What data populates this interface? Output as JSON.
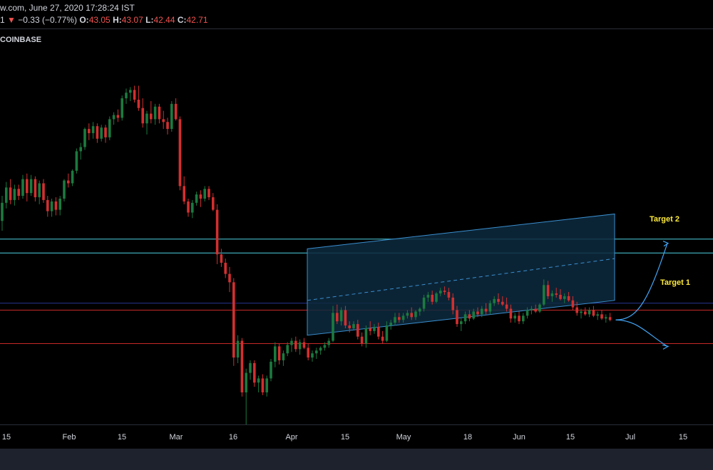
{
  "header": {
    "source_time": "w.com, June 27, 2020 17:28:24 IST",
    "change_prefix": "1",
    "change_arrow": "▼",
    "change_value": "−0.33 (−0.77%)",
    "o_label": "O:",
    "o_value": "43.05",
    "h_label": "H:",
    "h_value": "43.07",
    "l_label": "L:",
    "l_value": "42.44",
    "c_label": "C:",
    "c_value": "42.71",
    "exchange": "COINBASE"
  },
  "colors": {
    "up": "#26a69a",
    "down": "#ef5350",
    "up_candle": "#1b7a3e",
    "down_candle": "#d32f2f",
    "channel_fill": "#0d2a3e",
    "channel_stroke": "#3a8fd0",
    "cyan_line": "#4dd0e1",
    "red_line": "#c62828",
    "navy_line": "#283593",
    "target_text": "#ffeb3b",
    "arrow": "#42a5f5"
  },
  "chart_data": {
    "type": "candlestick",
    "title": "",
    "x_ticks": [
      "15",
      "Feb",
      "15",
      "Mar",
      "16",
      "Apr",
      "15",
      "May",
      "18",
      "Jun",
      "15",
      "Jul",
      "15"
    ],
    "y_range": [
      30,
      58
    ],
    "grid": false,
    "candles": [
      [
        0,
        44.6,
        46.4,
        43.9,
        45.9
      ],
      [
        1,
        45.9,
        47.4,
        45.5,
        47.0
      ],
      [
        2,
        47.0,
        47.6,
        45.8,
        46.1
      ],
      [
        3,
        46.1,
        47.2,
        45.7,
        46.9
      ],
      [
        4,
        46.9,
        47.2,
        46.1,
        46.4
      ],
      [
        5,
        46.4,
        47.9,
        46.2,
        47.6
      ],
      [
        6,
        47.6,
        48.0,
        46.0,
        46.6
      ],
      [
        7,
        46.6,
        47.9,
        46.4,
        47.6
      ],
      [
        8,
        47.6,
        47.8,
        46.0,
        46.3
      ],
      [
        9,
        46.3,
        47.5,
        45.8,
        47.3
      ],
      [
        10,
        47.3,
        47.6,
        45.9,
        46.1
      ],
      [
        11,
        46.1,
        46.4,
        44.9,
        45.3
      ],
      [
        12,
        45.3,
        46.2,
        44.9,
        46.0
      ],
      [
        13,
        46.0,
        46.3,
        45.0,
        45.4
      ],
      [
        14,
        45.4,
        46.4,
        45.0,
        46.2
      ],
      [
        15,
        46.2,
        47.6,
        46.0,
        47.5
      ],
      [
        16,
        47.5,
        48.0,
        47.0,
        47.3
      ],
      [
        17,
        47.3,
        48.3,
        47.1,
        48.2
      ],
      [
        18,
        48.2,
        49.8,
        48.0,
        49.6
      ],
      [
        19,
        49.6,
        50.2,
        49.0,
        49.9
      ],
      [
        20,
        49.9,
        51.3,
        49.7,
        51.2
      ],
      [
        21,
        51.2,
        51.6,
        50.4,
        50.9
      ],
      [
        22,
        50.9,
        51.7,
        50.5,
        51.4
      ],
      [
        23,
        51.4,
        51.6,
        50.2,
        50.5
      ],
      [
        24,
        50.5,
        51.5,
        50.3,
        51.3
      ],
      [
        25,
        51.3,
        51.5,
        50.2,
        50.6
      ],
      [
        26,
        50.6,
        52.1,
        50.4,
        51.9
      ],
      [
        27,
        51.9,
        52.4,
        51.5,
        52.2
      ],
      [
        28,
        52.2,
        52.6,
        51.7,
        52.0
      ],
      [
        29,
        52.0,
        53.6,
        51.8,
        53.4
      ],
      [
        30,
        53.4,
        54.1,
        53.0,
        53.8
      ],
      [
        31,
        53.8,
        54.2,
        53.2,
        54.0
      ],
      [
        32,
        54.0,
        54.3,
        53.1,
        53.3
      ],
      [
        33,
        53.3,
        54.3,
        52.5,
        52.7
      ],
      [
        34,
        52.7,
        53.4,
        51.3,
        51.6
      ],
      [
        35,
        51.6,
        52.5,
        50.8,
        52.3
      ],
      [
        36,
        52.3,
        53.2,
        51.6,
        51.9
      ],
      [
        37,
        51.9,
        53.0,
        51.5,
        52.8
      ],
      [
        38,
        52.8,
        53.0,
        51.6,
        51.9
      ],
      [
        39,
        51.9,
        52.5,
        51.2,
        51.7
      ],
      [
        40,
        51.7,
        52.0,
        50.8,
        51.2
      ],
      [
        41,
        51.2,
        53.2,
        51.0,
        53.0
      ],
      [
        42,
        53.0,
        53.4,
        51.8,
        51.9
      ],
      [
        43,
        51.9,
        52.1,
        46.8,
        47.1
      ],
      [
        44,
        47.1,
        47.8,
        45.8,
        46.0
      ],
      [
        45,
        46.0,
        46.2,
        44.9,
        45.2
      ],
      [
        46,
        45.2,
        46.1,
        44.8,
        45.9
      ],
      [
        47,
        45.9,
        46.7,
        45.7,
        46.5
      ],
      [
        48,
        46.5,
        46.8,
        45.6,
        46.2
      ],
      [
        49,
        46.2,
        47.1,
        46.0,
        46.9
      ],
      [
        50,
        46.9,
        47.1,
        46.1,
        46.3
      ],
      [
        51,
        46.3,
        46.6,
        45.3,
        45.4
      ],
      [
        52,
        45.4,
        45.8,
        41.5,
        42.2
      ],
      [
        53,
        42.2,
        42.6,
        41.3,
        41.6
      ],
      [
        54,
        41.6,
        41.9,
        40.5,
        40.8
      ],
      [
        55,
        40.8,
        41.3,
        39.5,
        40.2
      ],
      [
        56,
        40.2,
        40.5,
        34.2,
        34.8
      ],
      [
        57,
        34.8,
        36.4,
        34.4,
        36.0
      ],
      [
        58,
        36.0,
        36.2,
        32.0,
        32.3
      ],
      [
        59,
        32.3,
        34.0,
        30.0,
        33.7
      ],
      [
        60,
        33.7,
        34.6,
        33.2,
        34.4
      ],
      [
        61,
        34.4,
        34.6,
        32.7,
        33.0
      ],
      [
        62,
        33.0,
        33.5,
        32.3,
        33.3
      ],
      [
        63,
        33.3,
        33.6,
        32.1,
        32.3
      ],
      [
        64,
        32.3,
        33.5,
        32.0,
        33.3
      ],
      [
        65,
        33.3,
        34.7,
        33.1,
        34.5
      ],
      [
        66,
        34.5,
        35.9,
        34.1,
        35.6
      ],
      [
        67,
        35.6,
        35.8,
        34.3,
        34.6
      ],
      [
        68,
        34.6,
        35.3,
        34.2,
        35.1
      ],
      [
        69,
        35.1,
        35.9,
        34.9,
        35.7
      ],
      [
        70,
        35.7,
        36.2,
        35.2,
        36.0
      ],
      [
        71,
        36.0,
        36.3,
        35.2,
        35.4
      ],
      [
        72,
        35.4,
        36.1,
        35.0,
        35.9
      ],
      [
        73,
        35.9,
        36.2,
        35.4,
        35.5
      ],
      [
        74,
        35.5,
        35.8,
        34.6,
        34.8
      ],
      [
        75,
        34.8,
        35.3,
        34.5,
        35.1
      ],
      [
        76,
        35.1,
        35.5,
        34.7,
        35.3
      ],
      [
        77,
        35.3,
        35.6,
        35.0,
        35.5
      ],
      [
        78,
        35.5,
        35.9,
        35.3,
        35.7
      ],
      [
        79,
        35.7,
        36.2,
        35.5,
        36.0
      ],
      [
        80,
        36.0,
        38.5,
        35.9,
        38.0
      ],
      [
        81,
        38.0,
        38.6,
        37.2,
        37.4
      ],
      [
        82,
        37.4,
        38.4,
        37.1,
        38.2
      ],
      [
        83,
        38.2,
        38.5,
        36.9,
        37.1
      ],
      [
        84,
        37.1,
        37.4,
        36.6,
        36.9
      ],
      [
        85,
        36.9,
        37.4,
        36.8,
        37.2
      ],
      [
        86,
        37.2,
        37.5,
        36.1,
        36.3
      ],
      [
        87,
        36.3,
        36.6,
        35.6,
        35.8
      ],
      [
        88,
        35.8,
        37.1,
        35.5,
        36.9
      ],
      [
        89,
        36.9,
        37.4,
        36.4,
        36.7
      ],
      [
        90,
        36.7,
        37.2,
        36.5,
        37.0
      ],
      [
        91,
        37.0,
        37.3,
        36.1,
        36.3
      ],
      [
        92,
        36.3,
        36.7,
        35.8,
        36.0
      ],
      [
        93,
        36.0,
        37.4,
        35.9,
        37.1
      ],
      [
        94,
        37.1,
        37.5,
        36.8,
        37.3
      ],
      [
        95,
        37.3,
        38.0,
        37.1,
        37.7
      ],
      [
        96,
        37.7,
        38.0,
        37.3,
        37.5
      ],
      [
        97,
        37.5,
        38.0,
        37.3,
        37.8
      ],
      [
        98,
        37.8,
        38.2,
        37.6,
        38.0
      ],
      [
        99,
        38.0,
        38.4,
        37.5,
        37.7
      ],
      [
        100,
        37.7,
        38.2,
        37.5,
        38.1
      ],
      [
        101,
        38.1,
        38.4,
        37.8,
        38.3
      ],
      [
        102,
        38.3,
        39.3,
        38.1,
        39.1
      ],
      [
        103,
        39.1,
        39.5,
        38.8,
        39.3
      ],
      [
        104,
        39.3,
        39.6,
        38.6,
        38.8
      ],
      [
        105,
        38.8,
        39.5,
        38.7,
        39.4
      ],
      [
        106,
        39.4,
        39.8,
        39.2,
        39.6
      ],
      [
        107,
        39.6,
        39.9,
        39.3,
        39.5
      ],
      [
        108,
        39.5,
        39.8,
        38.9,
        39.1
      ],
      [
        109,
        39.1,
        39.4,
        37.9,
        38.2
      ],
      [
        110,
        38.2,
        38.5,
        37.0,
        37.2
      ],
      [
        111,
        37.2,
        37.6,
        36.7,
        37.4
      ],
      [
        112,
        37.4,
        38.1,
        37.2,
        37.9
      ],
      [
        113,
        37.9,
        38.2,
        37.4,
        37.6
      ],
      [
        114,
        37.6,
        38.3,
        37.5,
        38.1
      ],
      [
        115,
        38.1,
        38.4,
        37.7,
        37.9
      ],
      [
        116,
        37.9,
        38.5,
        37.7,
        38.3
      ],
      [
        117,
        38.3,
        38.7,
        37.9,
        38.1
      ],
      [
        118,
        38.1,
        38.9,
        37.9,
        38.7
      ],
      [
        119,
        38.7,
        39.2,
        38.5,
        39.0
      ],
      [
        120,
        39.0,
        39.4,
        38.6,
        38.8
      ],
      [
        121,
        38.8,
        39.2,
        38.5,
        38.6
      ],
      [
        122,
        38.6,
        39.1,
        38.1,
        38.3
      ],
      [
        123,
        38.3,
        38.6,
        37.3,
        37.6
      ],
      [
        124,
        37.6,
        38.0,
        37.3,
        37.8
      ],
      [
        125,
        37.8,
        38.1,
        37.2,
        37.4
      ],
      [
        126,
        37.4,
        38.0,
        37.2,
        37.8
      ],
      [
        127,
        37.8,
        38.4,
        37.6,
        38.2
      ],
      [
        128,
        38.2,
        38.5,
        37.9,
        38.3
      ],
      [
        129,
        38.3,
        38.6,
        38.0,
        38.1
      ],
      [
        130,
        38.1,
        38.7,
        38.0,
        38.6
      ],
      [
        131,
        38.6,
        40.4,
        38.5,
        40.0
      ],
      [
        132,
        40.0,
        40.3,
        39.0,
        39.2
      ],
      [
        133,
        39.2,
        39.6,
        38.8,
        39.4
      ],
      [
        134,
        39.4,
        39.8,
        39.1,
        39.3
      ],
      [
        135,
        39.3,
        39.7,
        38.9,
        39.0
      ],
      [
        136,
        39.0,
        39.4,
        38.7,
        39.2
      ],
      [
        137,
        39.2,
        39.5,
        38.8,
        38.9
      ],
      [
        138,
        38.9,
        39.2,
        38.2,
        38.4
      ],
      [
        139,
        38.4,
        38.8,
        37.8,
        38.0
      ],
      [
        140,
        38.0,
        38.3,
        37.6,
        38.1
      ],
      [
        141,
        38.1,
        38.4,
        37.8,
        37.9
      ],
      [
        142,
        37.9,
        38.4,
        37.7,
        38.2
      ],
      [
        143,
        38.2,
        38.5,
        37.7,
        37.8
      ],
      [
        144,
        37.8,
        38.1,
        37.5,
        37.9
      ],
      [
        145,
        37.9,
        38.2,
        37.5,
        37.6
      ],
      [
        146,
        37.6,
        37.9,
        37.3,
        37.7
      ],
      [
        147,
        37.7,
        38.0,
        37.4,
        37.5
      ]
    ],
    "channel": {
      "upper_start": 42.6,
      "upper_end": 45.1,
      "lower_start": 36.4,
      "lower_end": 38.9,
      "mid_start": 38.9,
      "mid_end": 41.9
    },
    "horizontal_levels": [
      {
        "color": "cyan",
        "value": 43.3
      },
      {
        "color": "cyan",
        "value": 42.3
      },
      {
        "color": "navy",
        "value": 38.7
      },
      {
        "color": "red",
        "value": 38.2
      },
      {
        "color": "red",
        "value": 35.8
      }
    ],
    "annotations": {
      "target_2": "Target 2",
      "target_1": "Target 1"
    }
  }
}
